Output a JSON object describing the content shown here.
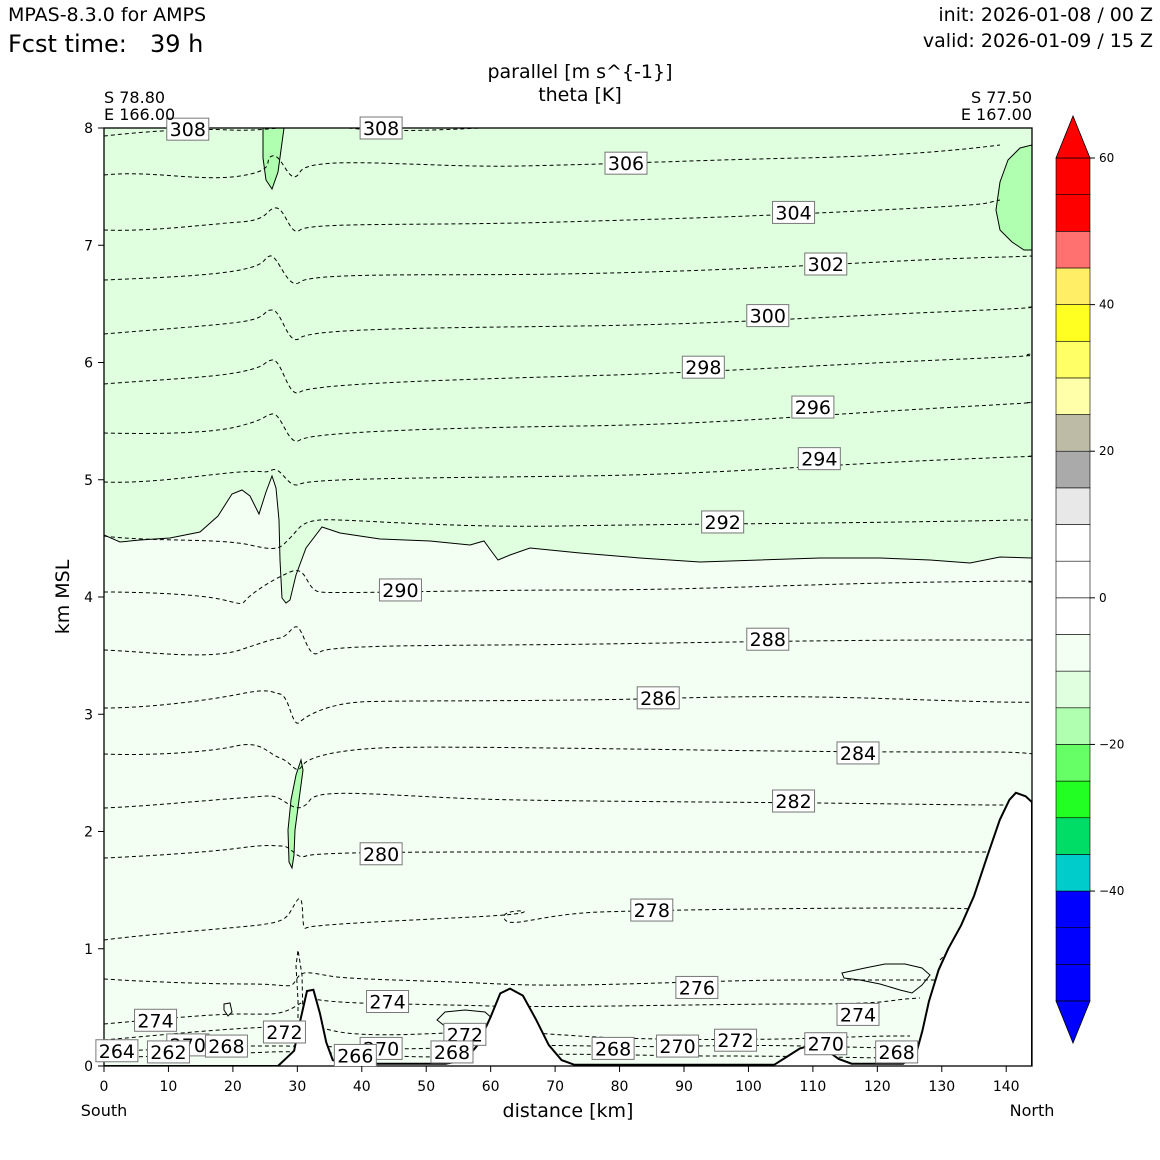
{
  "header": {
    "model": "MPAS-8.3.0 for AMPS",
    "fcst_label": "Fcst time:",
    "fcst_value": "39 h",
    "init": "init: 2026-01-08 / 00 Z",
    "valid": "valid: 2026-01-09 / 15 Z"
  },
  "chart_data": {
    "type": "contour-cross-section",
    "title_line1": "parallel [m s^{-1}]",
    "title_line2": "theta [K]",
    "xlabel": "distance [km]",
    "ylabel": "km MSL",
    "xlim": [
      0,
      144
    ],
    "ylim": [
      0,
      8
    ],
    "xticks": [
      0,
      10,
      20,
      30,
      40,
      50,
      60,
      70,
      80,
      90,
      100,
      110,
      120,
      130,
      140
    ],
    "yticks": [
      0,
      1,
      2,
      3,
      4,
      5,
      6,
      7,
      8
    ],
    "left_endpoint": {
      "lat": "S 78.80",
      "lon": "E 166.00",
      "side": "South"
    },
    "right_endpoint": {
      "lat": "S 77.50",
      "lon": "E 167.00",
      "side": "North"
    },
    "colorbar": {
      "min": -55,
      "max": 60,
      "extend": "both",
      "ticks": [
        60,
        40,
        20,
        0,
        -20,
        -40
      ],
      "tick_labels": [
        "60",
        "40",
        "20",
        "0",
        "−20",
        "−40"
      ],
      "bins": [
        {
          "from": -55,
          "to": -50,
          "color": "#0000ff"
        },
        {
          "from": -50,
          "to": -45,
          "color": "#0000ff"
        },
        {
          "from": -45,
          "to": -40,
          "color": "#0000ff"
        },
        {
          "from": -40,
          "to": -35,
          "color": "#00cccc"
        },
        {
          "from": -35,
          "to": -30,
          "color": "#00dd66"
        },
        {
          "from": -30,
          "to": -25,
          "color": "#22ff22"
        },
        {
          "from": -25,
          "to": -20,
          "color": "#66ff66"
        },
        {
          "from": -20,
          "to": -15,
          "color": "#b0ffb0"
        },
        {
          "from": -15,
          "to": -10,
          "color": "#dfffdf"
        },
        {
          "from": -10,
          "to": -5,
          "color": "#f2fff2"
        },
        {
          "from": -5,
          "to": 0,
          "color": "#ffffff"
        },
        {
          "from": 0,
          "to": 5,
          "color": "#ffffff"
        },
        {
          "from": 5,
          "to": 10,
          "color": "#ffffff"
        },
        {
          "from": 10,
          "to": 15,
          "color": "#e8e8e8"
        },
        {
          "from": 15,
          "to": 20,
          "color": "#aaaaaa"
        },
        {
          "from": 20,
          "to": 25,
          "color": "#bdbba6"
        },
        {
          "from": 25,
          "to": 30,
          "color": "#ffffaa"
        },
        {
          "from": 30,
          "to": 35,
          "color": "#ffff66"
        },
        {
          "from": 35,
          "to": 40,
          "color": "#ffff22"
        },
        {
          "from": 40,
          "to": 45,
          "color": "#ffee66"
        },
        {
          "from": 45,
          "to": 50,
          "color": "#ff7070"
        },
        {
          "from": 50,
          "to": 55,
          "color": "#ff0000"
        },
        {
          "from": 55,
          "to": 60,
          "color": "#ff0000"
        }
      ]
    },
    "wind_regions": [
      {
        "name": "upper-light-green",
        "color": "#dfffdf",
        "range": "-15 to -10"
      },
      {
        "name": "lower-pale-green",
        "color": "#f2fff2",
        "range": "-10 to -5"
      },
      {
        "name": "jet-core-patches",
        "color": "#b0ffb0",
        "range": "-20 to -15"
      }
    ],
    "theta_contours": [
      {
        "value": "308",
        "x": 13,
        "y": 7.99
      },
      {
        "value": "308",
        "x": 43,
        "y": 8.0
      },
      {
        "value": "306",
        "x": 81,
        "y": 7.7
      },
      {
        "value": "304",
        "x": 107,
        "y": 7.28
      },
      {
        "value": "302",
        "x": 112,
        "y": 6.84
      },
      {
        "value": "300",
        "x": 103,
        "y": 6.4
      },
      {
        "value": "298",
        "x": 93,
        "y": 5.96
      },
      {
        "value": "296",
        "x": 110,
        "y": 5.62
      },
      {
        "value": "294",
        "x": 111,
        "y": 5.18
      },
      {
        "value": "292",
        "x": 96,
        "y": 4.64
      },
      {
        "value": "290",
        "x": 46,
        "y": 4.06
      },
      {
        "value": "288",
        "x": 103,
        "y": 3.64
      },
      {
        "value": "286",
        "x": 86,
        "y": 3.14
      },
      {
        "value": "284",
        "x": 117,
        "y": 2.67
      },
      {
        "value": "282",
        "x": 107,
        "y": 2.26
      },
      {
        "value": "280",
        "x": 43,
        "y": 1.81
      },
      {
        "value": "278",
        "x": 85,
        "y": 1.33
      },
      {
        "value": "276",
        "x": 92,
        "y": 0.67
      },
      {
        "value": "274",
        "x": 8,
        "y": 0.39
      },
      {
        "value": "274",
        "x": 44,
        "y": 0.55
      },
      {
        "value": "274",
        "x": 117,
        "y": 0.44
      },
      {
        "value": "272",
        "x": 28,
        "y": 0.29
      },
      {
        "value": "272",
        "x": 56,
        "y": 0.27
      },
      {
        "value": "272",
        "x": 98,
        "y": 0.22
      },
      {
        "value": "270",
        "x": 13,
        "y": 0.18
      },
      {
        "value": "270",
        "x": 43,
        "y": 0.15
      },
      {
        "value": "270",
        "x": 89,
        "y": 0.17
      },
      {
        "value": "270",
        "x": 112,
        "y": 0.19
      },
      {
        "value": "268",
        "x": 19,
        "y": 0.17
      },
      {
        "value": "268",
        "x": 54,
        "y": 0.12
      },
      {
        "value": "268",
        "x": 79,
        "y": 0.15
      },
      {
        "value": "268",
        "x": 123,
        "y": 0.12
      },
      {
        "value": "266",
        "x": 39,
        "y": 0.09
      },
      {
        "value": "264",
        "x": 2,
        "y": 0.13
      },
      {
        "value": "262",
        "x": 10,
        "y": 0.12
      }
    ],
    "terrain_km": [
      [
        0,
        0
      ],
      [
        27,
        0
      ],
      [
        29.5,
        0.13
      ],
      [
        30.5,
        0.4
      ],
      [
        31.5,
        0.64
      ],
      [
        32.5,
        0.65
      ],
      [
        33.5,
        0.45
      ],
      [
        34.5,
        0.2
      ],
      [
        35.5,
        0.05
      ],
      [
        37,
        0.02
      ],
      [
        53,
        0.02
      ],
      [
        56,
        0.05
      ],
      [
        58,
        0.18
      ],
      [
        60,
        0.42
      ],
      [
        61.5,
        0.62
      ],
      [
        63,
        0.66
      ],
      [
        65,
        0.6
      ],
      [
        67,
        0.4
      ],
      [
        69,
        0.18
      ],
      [
        71,
        0.05
      ],
      [
        73,
        0.01
      ],
      [
        104,
        0.01
      ],
      [
        106,
        0.08
      ],
      [
        108,
        0.15
      ],
      [
        110,
        0.18
      ],
      [
        112,
        0.14
      ],
      [
        114,
        0.06
      ],
      [
        116,
        0.02
      ],
      [
        124,
        0.02
      ],
      [
        126,
        0.1
      ],
      [
        127,
        0.3
      ],
      [
        128,
        0.55
      ],
      [
        129.5,
        0.82
      ],
      [
        131,
        1.0
      ],
      [
        133,
        1.2
      ],
      [
        135,
        1.45
      ],
      [
        137,
        1.78
      ],
      [
        139,
        2.1
      ],
      [
        140.5,
        2.27
      ],
      [
        141.5,
        2.33
      ],
      [
        143,
        2.3
      ],
      [
        144,
        2.25
      ]
    ]
  }
}
